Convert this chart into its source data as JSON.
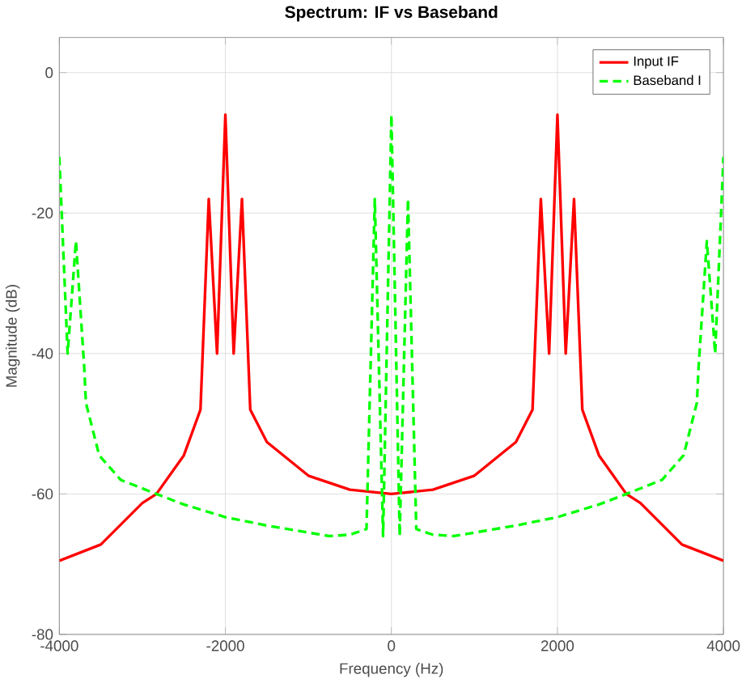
{
  "chart_data": {
    "type": "line",
    "title": "Spectrum: IF vs Baseband",
    "xlabel": "Frequency (Hz)",
    "ylabel": "Magnitude (dB)",
    "xlim": [
      -4000,
      4000
    ],
    "ylim": [
      -80,
      5
    ],
    "xticks": [
      -4000,
      -2000,
      0,
      2000,
      4000
    ],
    "yticks": [
      -80,
      -60,
      -40,
      -20,
      0
    ],
    "grid": true,
    "legend": "top right",
    "marker": "none",
    "series": [
      {
        "name": "Input IF",
        "color": "#ff0000",
        "line_style": "solid",
        "x": [
          -4000,
          -3500,
          -3000,
          -2830,
          -2500,
          -2300,
          -2200,
          -2100,
          -2000,
          -1900,
          -1800,
          -1700,
          -1500,
          -1250,
          -1000,
          -500,
          0,
          500,
          1000,
          1250,
          1500,
          1700,
          1800,
          1900,
          2000,
          2100,
          2200,
          2300,
          2500,
          2830,
          3000,
          3500,
          4000
        ],
        "values": [
          -69.5,
          -67.2,
          -61.3,
          -60,
          -54.5,
          -48,
          -18,
          -40,
          -6,
          -40,
          -18,
          -48,
          -52.6,
          -55,
          -57.4,
          -59.4,
          -60,
          -59.4,
          -57.4,
          -55,
          -52.6,
          -48,
          -18,
          -40,
          -6,
          -40,
          -18,
          -48,
          -54.5,
          -60,
          -61.3,
          -67.2,
          -69.5
        ]
      },
      {
        "name": "Baseband I",
        "color": "#00ff00",
        "line_style": "dashed",
        "x": [
          -4000,
          -3900,
          -3800,
          -3700,
          -3680,
          -3520,
          -3260,
          -2830,
          -2500,
          -2000,
          -1500,
          -1000,
          -750,
          -500,
          -300,
          -200,
          -100,
          0,
          100,
          200,
          300,
          500,
          750,
          1000,
          1500,
          2000,
          2500,
          2830,
          3260,
          3520,
          3680,
          3700,
          3800,
          3900,
          4000
        ],
        "values": [
          -12,
          -40,
          -24,
          -42,
          -47,
          -54.5,
          -58,
          -60,
          -61.5,
          -63.3,
          -64.5,
          -65.5,
          -66,
          -65.8,
          -65,
          -18,
          -66,
          -6,
          -66,
          -18,
          -65,
          -65.8,
          -66,
          -65.5,
          -64.5,
          -63.3,
          -61.5,
          -60,
          -58,
          -54.5,
          -47,
          -42,
          -24,
          -40,
          -12
        ]
      }
    ]
  }
}
